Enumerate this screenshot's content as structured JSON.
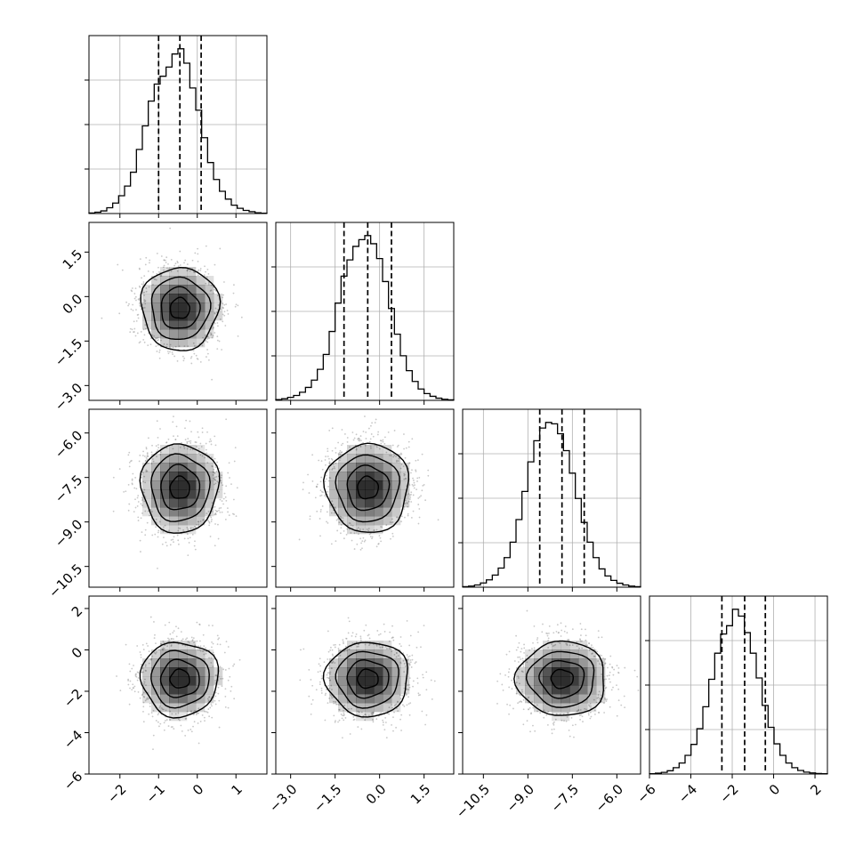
{
  "chart_data": {
    "type": "corner",
    "grid": true,
    "parameters": [
      {
        "range": [
          -2.8,
          1.8
        ],
        "ticks": [
          -2,
          -1,
          0,
          1
        ],
        "tick_labels": [
          "−2",
          "−1",
          "0",
          "1"
        ],
        "mean": -0.45,
        "sd": 0.5,
        "quantiles": [
          -1.0,
          -0.45,
          0.1
        ]
      },
      {
        "range": [
          -3.5,
          2.5
        ],
        "ticks": [
          -3.0,
          -1.5,
          0.0,
          1.5
        ],
        "tick_labels": [
          "−3.0",
          "−1.5",
          "0.0",
          "1.5"
        ],
        "mean": -0.4,
        "sd": 0.7,
        "quantiles": [
          -1.2,
          -0.4,
          0.4
        ]
      },
      {
        "range": [
          -11.2,
          -5.2
        ],
        "ticks": [
          -10.5,
          -9.0,
          -7.5,
          -6.0
        ],
        "tick_labels": [
          "−10.5",
          "−9.0",
          "−7.5",
          "−6.0"
        ],
        "mean": -7.85,
        "sd": 0.75,
        "quantiles": [
          -8.6,
          -7.85,
          -7.1
        ]
      },
      {
        "range": [
          -6.0,
          2.6
        ],
        "ticks": [
          -6,
          -4,
          -2,
          0,
          2
        ],
        "tick_labels": [
          "−6",
          "−4",
          "−2",
          "0",
          "2"
        ],
        "mean": -1.4,
        "sd": 0.9,
        "quantiles": [
          -2.5,
          -1.4,
          -0.4
        ]
      }
    ],
    "histograms": [
      {
        "param": 0,
        "bins": 30,
        "counts": [
          0.2,
          0.5,
          1.0,
          2.2,
          4.0,
          6.8,
          10.5,
          15.8,
          24.5,
          33.5,
          43.0,
          49.5,
          52.5,
          56.0,
          61.0,
          63.0,
          57.5,
          48.0,
          39.5,
          29.0,
          19.5,
          13.0,
          8.5,
          5.5,
          3.2,
          2.0,
          1.2,
          0.7,
          0.3,
          0.1
        ]
      },
      {
        "param": 1,
        "bins": 30,
        "counts": [
          0.3,
          0.6,
          1.1,
          1.8,
          3.0,
          4.8,
          7.5,
          11.5,
          17.0,
          25.5,
          36.0,
          46.0,
          52.0,
          57.0,
          59.5,
          61.0,
          58.0,
          52.5,
          44.0,
          34.0,
          24.5,
          16.5,
          11.0,
          7.0,
          4.2,
          2.5,
          1.5,
          0.8,
          0.4,
          0.2
        ]
      },
      {
        "param": 2,
        "bins": 30,
        "counts": [
          0.2,
          0.4,
          0.8,
          1.5,
          2.6,
          4.3,
          6.8,
          10.5,
          16.0,
          24.0,
          34.0,
          44.5,
          52.0,
          56.5,
          58.5,
          58.0,
          54.5,
          48.5,
          40.5,
          31.5,
          23.0,
          16.0,
          10.5,
          6.5,
          4.0,
          2.4,
          1.4,
          0.8,
          0.4,
          0.2
        ]
      },
      {
        "param": 3,
        "bins": 30,
        "counts": [
          0.1,
          0.3,
          0.6,
          1.2,
          2.3,
          4.0,
          6.8,
          10.8,
          16.5,
          24.5,
          34.5,
          44.0,
          51.0,
          54.0,
          60.0,
          57.5,
          51.5,
          44.0,
          35.0,
          25.0,
          17.0,
          11.0,
          6.8,
          4.0,
          2.3,
          1.3,
          0.7,
          0.4,
          0.2,
          0.1
        ]
      }
    ],
    "pairs": [
      {
        "x_param": 0,
        "y_param": 1
      },
      {
        "x_param": 0,
        "y_param": 2
      },
      {
        "x_param": 1,
        "y_param": 2
      },
      {
        "x_param": 0,
        "y_param": 3
      },
      {
        "x_param": 1,
        "y_param": 3
      },
      {
        "x_param": 2,
        "y_param": 3
      }
    ],
    "contour_levels_sigma": [
      0.5,
      1.0,
      1.5,
      2.0
    ],
    "colors": {
      "line": "#000000",
      "grid": "#b0b0b0",
      "points": "#9a9a9a",
      "density": "#000000"
    }
  }
}
